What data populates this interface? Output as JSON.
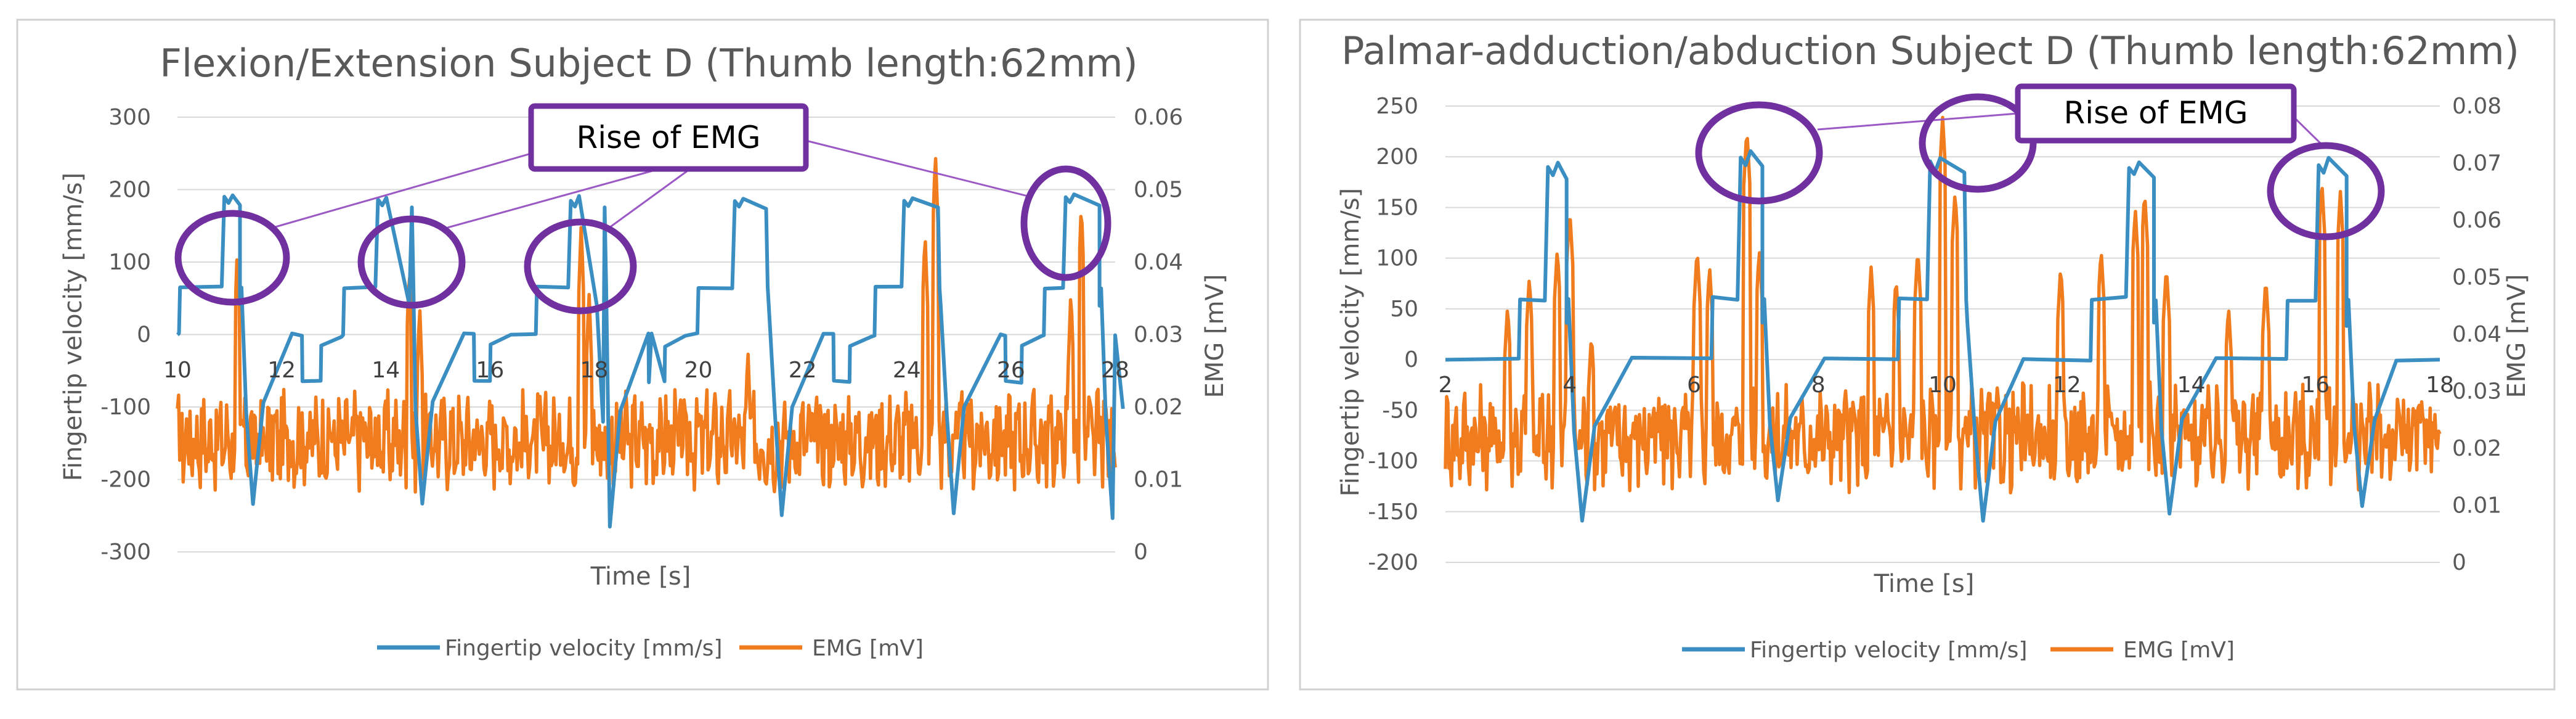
{
  "colors": {
    "velocity": "#3b8ec2",
    "emg": "#f07c1e",
    "callout": "#7030a0"
  },
  "chart_data": [
    {
      "type": "line",
      "title": "Flexion/Extension Subject D (Thumb length:62mm)",
      "xlabel": "Time [s]",
      "ylabel": "Fingertip velocity [mm/s]",
      "y2label": "EMG [mV]",
      "xlim": [
        10,
        28
      ],
      "ylim": [
        -300,
        300
      ],
      "y2lim": [
        0,
        0.06
      ],
      "xticks": [
        10,
        12,
        14,
        16,
        18,
        20,
        22,
        24,
        26,
        28
      ],
      "yticks": [
        -300,
        -200,
        -100,
        0,
        100,
        200,
        300
      ],
      "y2ticks": [
        0,
        0.01,
        0.02,
        0.03,
        0.04,
        0.05,
        0.06
      ],
      "legend": [
        "Fingertip velocity [mm/s]",
        "EMG [mV]"
      ],
      "annotation": {
        "text": "Rise of EMG",
        "highlight_times": [
          11.1,
          14.4,
          17.8,
          27.2
        ]
      },
      "series": [
        {
          "name": "Fingertip velocity [mm/s]",
          "cycles": [
            {
              "rise": 10.05,
              "step1": 10.9,
              "v1": 190,
              "drop": 11.2,
              "fall": 11.2,
              "neg": -235,
              "recover": 12.2
            },
            {
              "rise": 13.2,
              "step1": 13.85,
              "v1": 185,
              "drop": 14.5,
              "fall": 14.45,
              "neg": -232,
              "recover": 15.5
            },
            {
              "rise": 16.9,
              "step1": 17.55,
              "v1": 186,
              "drop": 18.2,
              "fall": 18.05,
              "neg": -265,
              "recover": 19.1
            },
            {
              "rise": 20.0,
              "step1": 20.7,
              "v1": 185,
              "drop": 21.3,
              "fall": 21.35,
              "neg": -250,
              "recover": 22.4
            },
            {
              "rise": 23.4,
              "step1": 23.95,
              "v1": 185,
              "drop": 24.6,
              "fall": 24.65,
              "neg": -248,
              "recover": 25.8
            },
            {
              "rise": 26.65,
              "step1": 27.05,
              "v1": 190,
              "drop": 27.7,
              "fall": 27.7,
              "neg": -255,
              "recover": 28.0
            }
          ],
          "plateau": 65,
          "dip": -65,
          "dip_times": [
            [
              12.4,
              12.75
            ],
            [
              15.7,
              16.0
            ],
            [
              19.05,
              19.35
            ],
            [
              22.6,
              22.9
            ],
            [
              25.9,
              26.2
            ]
          ]
        },
        {
          "name": "EMG [mV]",
          "baseline": 0.0155,
          "noise": 0.0055,
          "peaks": [
            {
              "t": 11.15,
              "v": 0.042
            },
            {
              "t": 14.45,
              "v": 0.039
            },
            {
              "t": 14.65,
              "v": 0.034
            },
            {
              "t": 17.75,
              "v": 0.045
            },
            {
              "t": 17.9,
              "v": 0.036
            },
            {
              "t": 20.95,
              "v": 0.028
            },
            {
              "t": 24.35,
              "v": 0.044
            },
            {
              "t": 24.55,
              "v": 0.055
            },
            {
              "t": 27.35,
              "v": 0.048
            },
            {
              "t": 27.15,
              "v": 0.036
            }
          ]
        }
      ]
    },
    {
      "type": "line",
      "title": "Palmar-adduction/abduction Subject D (Thumb length:62mm)",
      "xlabel": "Time [s]",
      "ylabel": "Fingertip velocity [mm/s]",
      "y2label": "EMG [mV]",
      "xlim": [
        2,
        18
      ],
      "ylim": [
        -200,
        250
      ],
      "y2lim": [
        0,
        0.08
      ],
      "xticks": [
        2,
        4,
        6,
        8,
        10,
        12,
        14,
        16,
        18
      ],
      "yticks": [
        -200,
        -150,
        -100,
        -50,
        0,
        50,
        100,
        150,
        200,
        250
      ],
      "y2ticks": [
        0,
        0.01,
        0.02,
        0.03,
        0.04,
        0.05,
        0.06,
        0.07,
        0.08
      ],
      "legend": [
        "Fingertip velocity [mm/s]",
        "EMG [mV]"
      ],
      "annotation": {
        "text": "Rise of EMG",
        "highlight_times": [
          6.75,
          9.8,
          16.2
        ]
      },
      "series": [
        {
          "name": "Fingertip velocity [mm/s]",
          "cycles": [
            {
              "rise": 3.2,
              "step1": 3.65,
              "v1": 190,
              "drop": 3.95,
              "fall": 3.95,
              "neg": -160,
              "recover": 5.0
            },
            {
              "rise": 6.3,
              "step1": 6.75,
              "v1": 200,
              "drop": 7.1,
              "fall": 7.1,
              "neg": -140,
              "recover": 8.1
            },
            {
              "rise": 9.3,
              "step1": 9.8,
              "v1": 195,
              "drop": 10.35,
              "fall": 10.4,
              "neg": -157,
              "recover": 11.3
            },
            {
              "rise": 12.4,
              "step1": 13.0,
              "v1": 190,
              "drop": 13.4,
              "fall": 13.4,
              "neg": -150,
              "recover": 14.4
            },
            {
              "rise": 15.55,
              "step1": 16.05,
              "v1": 193,
              "drop": 16.5,
              "fall": 16.5,
              "neg": -145,
              "recover": 17.3
            }
          ],
          "plateau": 60,
          "dip": -10,
          "dip_times": []
        },
        {
          "name": "EMG [mV]",
          "baseline": 0.022,
          "noise": 0.0075,
          "peaks": [
            {
              "t": 3.0,
              "v": 0.045
            },
            {
              "t": 3.35,
              "v": 0.05
            },
            {
              "t": 3.8,
              "v": 0.055
            },
            {
              "t": 4.0,
              "v": 0.062
            },
            {
              "t": 4.35,
              "v": 0.04
            },
            {
              "t": 6.05,
              "v": 0.055
            },
            {
              "t": 6.25,
              "v": 0.052
            },
            {
              "t": 6.85,
              "v": 0.076
            },
            {
              "t": 7.05,
              "v": 0.055
            },
            {
              "t": 8.85,
              "v": 0.052
            },
            {
              "t": 9.25,
              "v": 0.05
            },
            {
              "t": 10.0,
              "v": 0.078
            },
            {
              "t": 10.2,
              "v": 0.065
            },
            {
              "t": 9.6,
              "v": 0.055
            },
            {
              "t": 11.9,
              "v": 0.052
            },
            {
              "t": 12.55,
              "v": 0.055
            },
            {
              "t": 13.1,
              "v": 0.062
            },
            {
              "t": 13.25,
              "v": 0.065
            },
            {
              "t": 14.6,
              "v": 0.045
            },
            {
              "t": 15.2,
              "v": 0.05
            },
            {
              "t": 16.1,
              "v": 0.067
            },
            {
              "t": 16.4,
              "v": 0.065
            },
            {
              "t": 13.6,
              "v": 0.052
            }
          ]
        }
      ]
    }
  ]
}
